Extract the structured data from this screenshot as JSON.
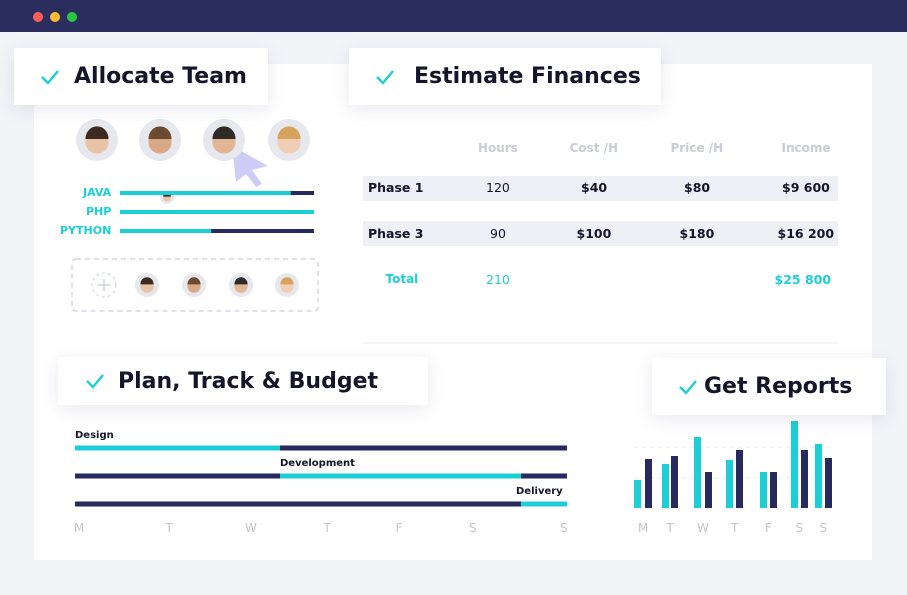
{
  "cards": {
    "allocate": "Allocate Team",
    "finances": "Estimate Finances",
    "plan": "Plan, Track & Budget",
    "reports": "Get Reports"
  },
  "skills": [
    {
      "name": "JAVA",
      "level": 88
    },
    {
      "name": "PHP",
      "level": 100
    },
    {
      "name": "PYTHON",
      "level": 47
    }
  ],
  "table": {
    "headers": [
      "Hours",
      "Cost /H",
      "Price /H",
      "Income"
    ],
    "rows": [
      [
        "Phase 1",
        "120",
        "$40",
        "$80",
        "$9 600"
      ],
      [
        "Phase 3",
        "90",
        "$100",
        "$180",
        "$16 200"
      ]
    ],
    "total": {
      "label": "Total",
      "hours": "210",
      "income": "$25 800"
    }
  },
  "plan": {
    "tasks": [
      "Design",
      "Development",
      "Delivery"
    ],
    "days": [
      "M",
      "T",
      "W",
      "T",
      "F",
      "S",
      "S"
    ]
  },
  "reports": {
    "days": [
      "M",
      "T",
      "W",
      "T",
      "F",
      "S",
      "S"
    ],
    "series": [
      {
        "color": "#1ccfd6",
        "values": [
          28,
          44,
          71,
          48,
          36,
          87,
          64
        ]
      },
      {
        "color": "#262a5e",
        "values": [
          49,
          52,
          36,
          58,
          36,
          58,
          50
        ]
      }
    ]
  }
}
